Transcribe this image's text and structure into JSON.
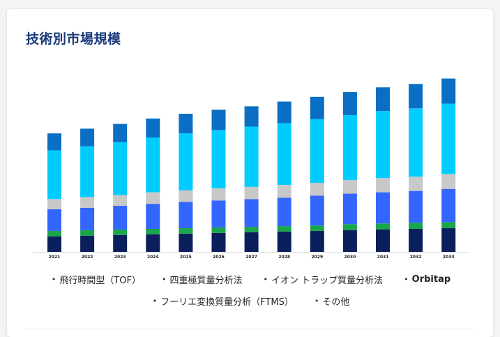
{
  "title": "技術別市場規模",
  "chart_data": {
    "type": "bar",
    "stacked": true,
    "categories": [
      "2021",
      "2022",
      "2023",
      "2024",
      "2025",
      "2026",
      "2027",
      "2028",
      "2029",
      "2030",
      "2031",
      "2032",
      "2033"
    ],
    "series": [
      {
        "name": "飛行時間型（TOF）",
        "color": "#0a1f5c",
        "values": [
          23,
          24,
          25,
          26,
          27,
          28,
          29,
          30,
          31,
          32,
          33,
          34,
          35
        ]
      },
      {
        "name": "四重極質量分析法",
        "color": "#1aa64b",
        "values": [
          8,
          8,
          8,
          8,
          8,
          8,
          8,
          8,
          8,
          9,
          9,
          9,
          9
        ]
      },
      {
        "name": "イオン トラップ質量分析法",
        "color": "#3366ff",
        "values": [
          32,
          33,
          35,
          37,
          39,
          40,
          41,
          42,
          44,
          45,
          46,
          47,
          49
        ]
      },
      {
        "name": "Orbitap",
        "color": "#c8c8c8",
        "values": [
          15,
          16,
          16,
          17,
          17,
          18,
          18,
          19,
          19,
          20,
          21,
          21,
          22
        ]
      },
      {
        "name": "フーリエ変換質量分析（FTMS）",
        "color": "#00ccff",
        "values": [
          72,
          75,
          78,
          81,
          84,
          86,
          89,
          91,
          94,
          96,
          99,
          101,
          104
        ]
      },
      {
        "name": "その他",
        "color": "#0a6fc4",
        "values": [
          25,
          26,
          27,
          28,
          29,
          30,
          30,
          32,
          33,
          34,
          35,
          36,
          37
        ]
      }
    ],
    "ylim": [
      0,
      270
    ],
    "grid": false,
    "legend_position": "bottom"
  }
}
